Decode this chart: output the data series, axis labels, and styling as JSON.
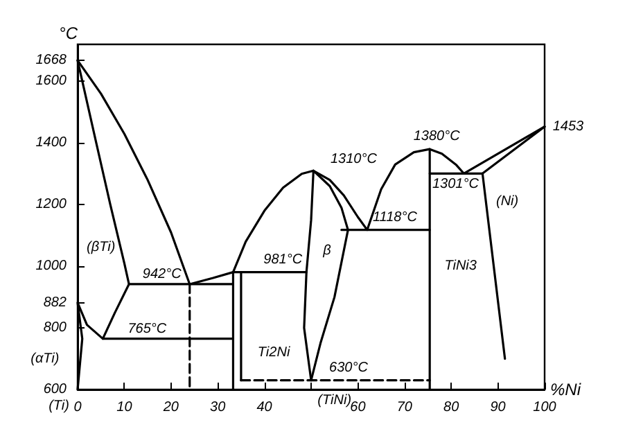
{
  "chart_data": {
    "type": "line",
    "ylabel": "°C",
    "xlabel": "%Ni",
    "xlim": [
      0,
      100
    ],
    "ylim": [
      600,
      1720
    ],
    "xticks": [
      0,
      10,
      20,
      30,
      40,
      {
        "value": 50,
        "label": null
      },
      60,
      70,
      80,
      90,
      100
    ],
    "yticks": [
      600,
      800,
      882,
      1000,
      1200,
      1400,
      1600,
      1668
    ],
    "marker": "none",
    "line_style": "solid",
    "series": [
      {
        "color": "#000000",
        "x": [
          0,
          5,
          10,
          15,
          20,
          24,
          29,
          33.3,
          36,
          40,
          44,
          48,
          50.5,
          50,
          49,
          48.5,
          50
        ],
        "values": [
          1668,
          1560,
          1430,
          1280,
          1110,
          942,
          962,
          981,
          1080,
          1180,
          1255,
          1300,
          1310,
          1150,
          981,
          800,
          630
        ]
      },
      {
        "color": "#000000",
        "x": [
          0,
          4,
          7,
          10,
          11,
          8,
          5.4,
          2,
          0,
          1,
          0
        ],
        "values": [
          1668,
          1400,
          1200,
          1010,
          942,
          850,
          765,
          810,
          882,
          765,
          600
        ]
      },
      {
        "color": "#000000",
        "x": [
          11,
          33.3
        ],
        "values": [
          942,
          942
        ]
      },
      {
        "color": "#000000",
        "x": [
          5.4,
          33.3
        ],
        "values": [
          765,
          765
        ]
      },
      {
        "color": "#000000",
        "x": [
          24,
          24
        ],
        "values": [
          942,
          600
        ],
        "line_style": "dashed"
      },
      {
        "color": "#000000",
        "x": [
          33.3,
          33.3
        ],
        "values": [
          981,
          600
        ]
      },
      {
        "color": "#000000",
        "x": [
          35,
          35
        ],
        "values": [
          981,
          630
        ]
      },
      {
        "color": "#000000",
        "x": [
          33.3,
          49
        ],
        "values": [
          981,
          981
        ]
      },
      {
        "color": "#000000",
        "x": [
          50.5,
          54,
          57,
          60,
          62,
          65,
          68,
          72,
          75.4,
          78,
          81,
          82.7,
          100
        ],
        "values": [
          1310,
          1280,
          1230,
          1160,
          1118,
          1250,
          1330,
          1370,
          1380,
          1365,
          1330,
          1301,
          1453
        ]
      },
      {
        "color": "#000000",
        "x": [
          50.5,
          54,
          56.5,
          57.9,
          55,
          52,
          50
        ],
        "values": [
          1310,
          1260,
          1190,
          1118,
          900,
          750,
          630
        ]
      },
      {
        "color": "#000000",
        "x": [
          56.5,
          75.4
        ],
        "values": [
          1118,
          1118
        ]
      },
      {
        "color": "#000000",
        "x": [
          35,
          75.4
        ],
        "values": [
          630,
          630
        ],
        "line_style": "dashed"
      },
      {
        "color": "#000000",
        "x": [
          75.4,
          75.4
        ],
        "values": [
          1380,
          600
        ]
      },
      {
        "color": "#000000",
        "x": [
          75.4,
          86.7,
          91.5
        ],
        "values": [
          1301,
          1301,
          700
        ]
      },
      {
        "color": "#000000",
        "x": [
          86.7,
          100
        ],
        "values": [
          1301,
          1453
        ]
      }
    ],
    "annotations": [
      {
        "text": "942°C",
        "x": 24,
        "y": 942
      },
      {
        "text": "765°C",
        "x": 5.4,
        "y": 765
      },
      {
        "text": "981°C",
        "x": 49,
        "y": 981
      },
      {
        "text": "1310°C",
        "x": 50.5,
        "y": 1310
      },
      {
        "text": "1118°C",
        "x": 62,
        "y": 1118
      },
      {
        "text": "1380°C",
        "x": 75.4,
        "y": 1380
      },
      {
        "text": "1301°C",
        "x": 82.7,
        "y": 1301
      },
      {
        "text": "630°C",
        "x": 50,
        "y": 630
      },
      {
        "text": "1453",
        "x": 100,
        "y": 1453
      },
      "(βTi)",
      "(αTi)",
      "β",
      "(Ni)",
      "Ti2Ni",
      "TiNi3",
      "(TiNi)",
      "(Ti)"
    ]
  }
}
